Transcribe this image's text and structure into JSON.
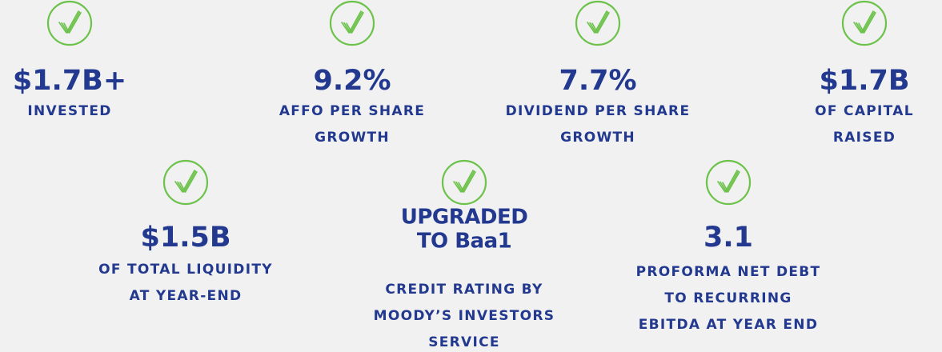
{
  "items": [
    {
      "value": [
        "$1.7B+"
      ],
      "label": [
        "INVESTED"
      ]
    },
    {
      "value": [
        "9.2%"
      ],
      "label": [
        "AFFO PER SHARE",
        "GROWTH"
      ]
    },
    {
      "value": [
        "7.7%"
      ],
      "label": [
        "DIVIDEND PER SHARE",
        "GROWTH"
      ]
    },
    {
      "value": [
        "$1.7B"
      ],
      "label": [
        "OF CAPITAL",
        "RAISED"
      ]
    },
    {
      "value": [
        "$1.5B"
      ],
      "label": [
        "OF TOTAL LIQUIDITY",
        "AT YEAR-END"
      ]
    },
    {
      "value": [
        "UPGRADED",
        "TO Baa1"
      ],
      "label": [
        "CREDIT RATING BY",
        "MOODY’S INVESTORS",
        "SERVICE"
      ]
    },
    {
      "value": [
        "3.1"
      ],
      "label": [
        "PROFORMA NET DEBT",
        "TO RECURRING",
        "EBITDA AT YEAR END"
      ]
    }
  ]
}
